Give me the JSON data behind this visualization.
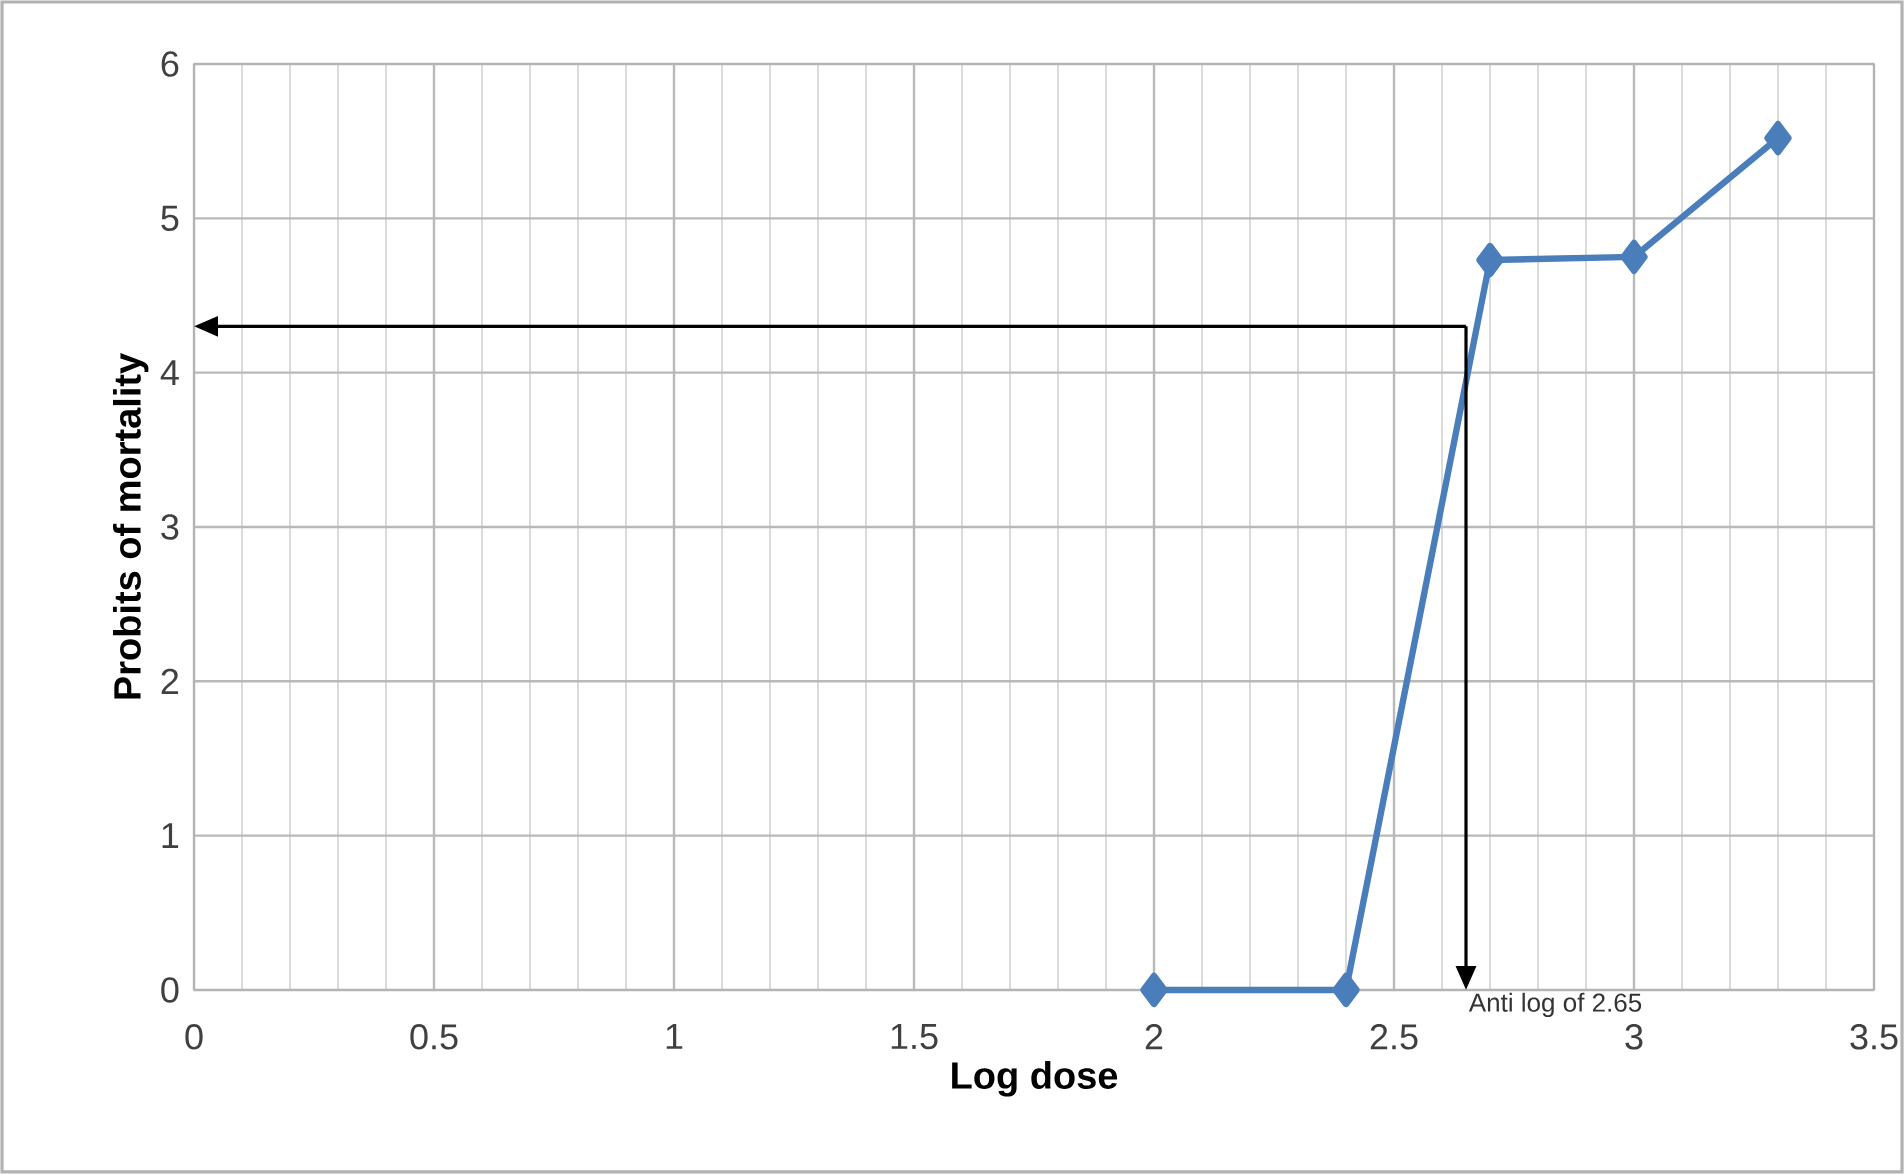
{
  "chart_data": {
    "type": "line",
    "xlabel": "Log dose",
    "ylabel": "Probits of mortality",
    "x": [
      2,
      2.4,
      2.7,
      3,
      3.3
    ],
    "series": [
      {
        "color": "#4a7ebb",
        "values": [
          0,
          0,
          4.73,
          4.75,
          5.52
        ]
      }
    ],
    "xlim": [
      0,
      3.5
    ],
    "xticks": [
      0,
      0.5,
      1,
      1.5,
      2,
      2.5,
      3,
      3.5
    ],
    "ylim": [
      0,
      6
    ],
    "yticks": [
      0,
      1,
      2,
      3,
      4,
      5,
      6
    ],
    "grid": true,
    "marker": "diamond",
    "line_style": "solid",
    "annotations": [
      {
        "text": "Anti log of 2.65",
        "x": 2.65,
        "y": 4.3
      }
    ]
  }
}
